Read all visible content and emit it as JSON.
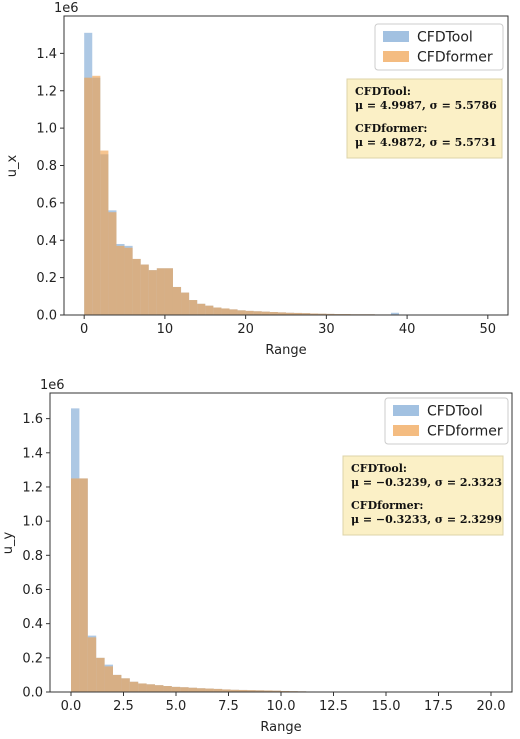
{
  "chart_data": [
    {
      "type": "bar",
      "xlabel": "Range",
      "ylabel": "u_x",
      "offset_text": "1e6",
      "xlim": [
        -2.5,
        52.5
      ],
      "ylim": [
        0,
        1.6
      ],
      "xticks": [
        "0",
        "10",
        "20",
        "30",
        "40",
        "50"
      ],
      "yticks": [
        "0.0",
        "0.2",
        "0.4",
        "0.6",
        "0.8",
        "1.0",
        "1.2",
        "1.4"
      ],
      "bin_start": 0,
      "bin_width": 1.0,
      "legend_position": "top-right",
      "series": [
        {
          "name": "CFDTool",
          "color": "#7ba7d4",
          "values": [
            1.51,
            1.27,
            0.86,
            0.56,
            0.38,
            0.37,
            0.3,
            0.27,
            0.24,
            0.25,
            0.25,
            0.15,
            0.12,
            0.08,
            0.06,
            0.05,
            0.04,
            0.035,
            0.03,
            0.025,
            0.022,
            0.02,
            0.018,
            0.016,
            0.014,
            0.012,
            0.011,
            0.01,
            0.008,
            0.007,
            0.006,
            0.005,
            0.005,
            0.004,
            0.004,
            0.004,
            0.003,
            0.003,
            0.012,
            0.002,
            0.002,
            0.002,
            0.001,
            0.001,
            0.001,
            0.001,
            0.001,
            0.001,
            0.001,
            0.001
          ]
        },
        {
          "name": "CFDformer",
          "color": "#f0a04b",
          "values": [
            1.27,
            1.28,
            0.88,
            0.55,
            0.37,
            0.36,
            0.3,
            0.27,
            0.24,
            0.25,
            0.25,
            0.15,
            0.12,
            0.08,
            0.06,
            0.05,
            0.04,
            0.035,
            0.03,
            0.025,
            0.022,
            0.02,
            0.018,
            0.016,
            0.014,
            0.012,
            0.011,
            0.01,
            0.008,
            0.007,
            0.006,
            0.005,
            0.005,
            0.004,
            0.004,
            0.004,
            0.003,
            0.003,
            0.003,
            0.002,
            0.002,
            0.002,
            0.001,
            0.001,
            0.001,
            0.001,
            0.001,
            0.001,
            0.001,
            0.001
          ]
        }
      ],
      "annotation": {
        "line1": "CFDTool:",
        "line2": "μ = 4.9987, σ = 5.5786",
        "line3": "CFDformer:",
        "line4": "μ = 4.9872, σ = 5.5731"
      }
    },
    {
      "type": "bar",
      "xlabel": "Range",
      "ylabel": "u_y",
      "offset_text": "1e6",
      "xlim": [
        -1.0,
        21.0
      ],
      "ylim": [
        0,
        1.75
      ],
      "xticks": [
        "0.0",
        "2.5",
        "5.0",
        "7.5",
        "10.0",
        "12.5",
        "15.0",
        "17.5",
        "20.0"
      ],
      "yticks": [
        "0.0",
        "0.2",
        "0.4",
        "0.6",
        "0.8",
        "1.0",
        "1.2",
        "1.4",
        "1.6"
      ],
      "bin_start": 0,
      "bin_width": 0.4,
      "legend_position": "top-right",
      "series": [
        {
          "name": "CFDTool",
          "color": "#7ba7d4",
          "values": [
            1.66,
            1.25,
            0.33,
            0.2,
            0.16,
            0.1,
            0.08,
            0.06,
            0.05,
            0.045,
            0.04,
            0.035,
            0.03,
            0.028,
            0.025,
            0.022,
            0.02,
            0.018,
            0.015,
            0.013,
            0.012,
            0.011,
            0.01,
            0.009,
            0.008,
            0.006,
            0.005,
            0.004,
            0.003,
            0.002,
            0.002,
            0.001,
            0.001,
            0.001,
            0.001,
            0.001,
            0.001,
            0.001,
            0.001,
            0.001,
            0.001,
            0.001,
            0.001,
            0.001,
            0.001,
            0.001,
            0.001,
            0.001,
            0.001,
            0.001
          ]
        },
        {
          "name": "CFDformer",
          "color": "#f0a04b",
          "values": [
            1.25,
            1.25,
            0.32,
            0.2,
            0.15,
            0.1,
            0.08,
            0.06,
            0.05,
            0.045,
            0.04,
            0.035,
            0.03,
            0.028,
            0.025,
            0.022,
            0.02,
            0.018,
            0.015,
            0.013,
            0.012,
            0.011,
            0.01,
            0.009,
            0.008,
            0.006,
            0.005,
            0.004,
            0.003,
            0.002,
            0.002,
            0.001,
            0.001,
            0.001,
            0.001,
            0.001,
            0.001,
            0.001,
            0.001,
            0.001,
            0.001,
            0.001,
            0.001,
            0.001,
            0.001,
            0.001,
            0.001,
            0.001,
            0.001,
            0.001
          ]
        }
      ],
      "annotation": {
        "line1": "CFDTool:",
        "line2": "μ = −0.3239, σ = 2.3323",
        "line3": "CFDformer:",
        "line4": "μ = −0.3233, σ = 2.3299"
      }
    }
  ]
}
